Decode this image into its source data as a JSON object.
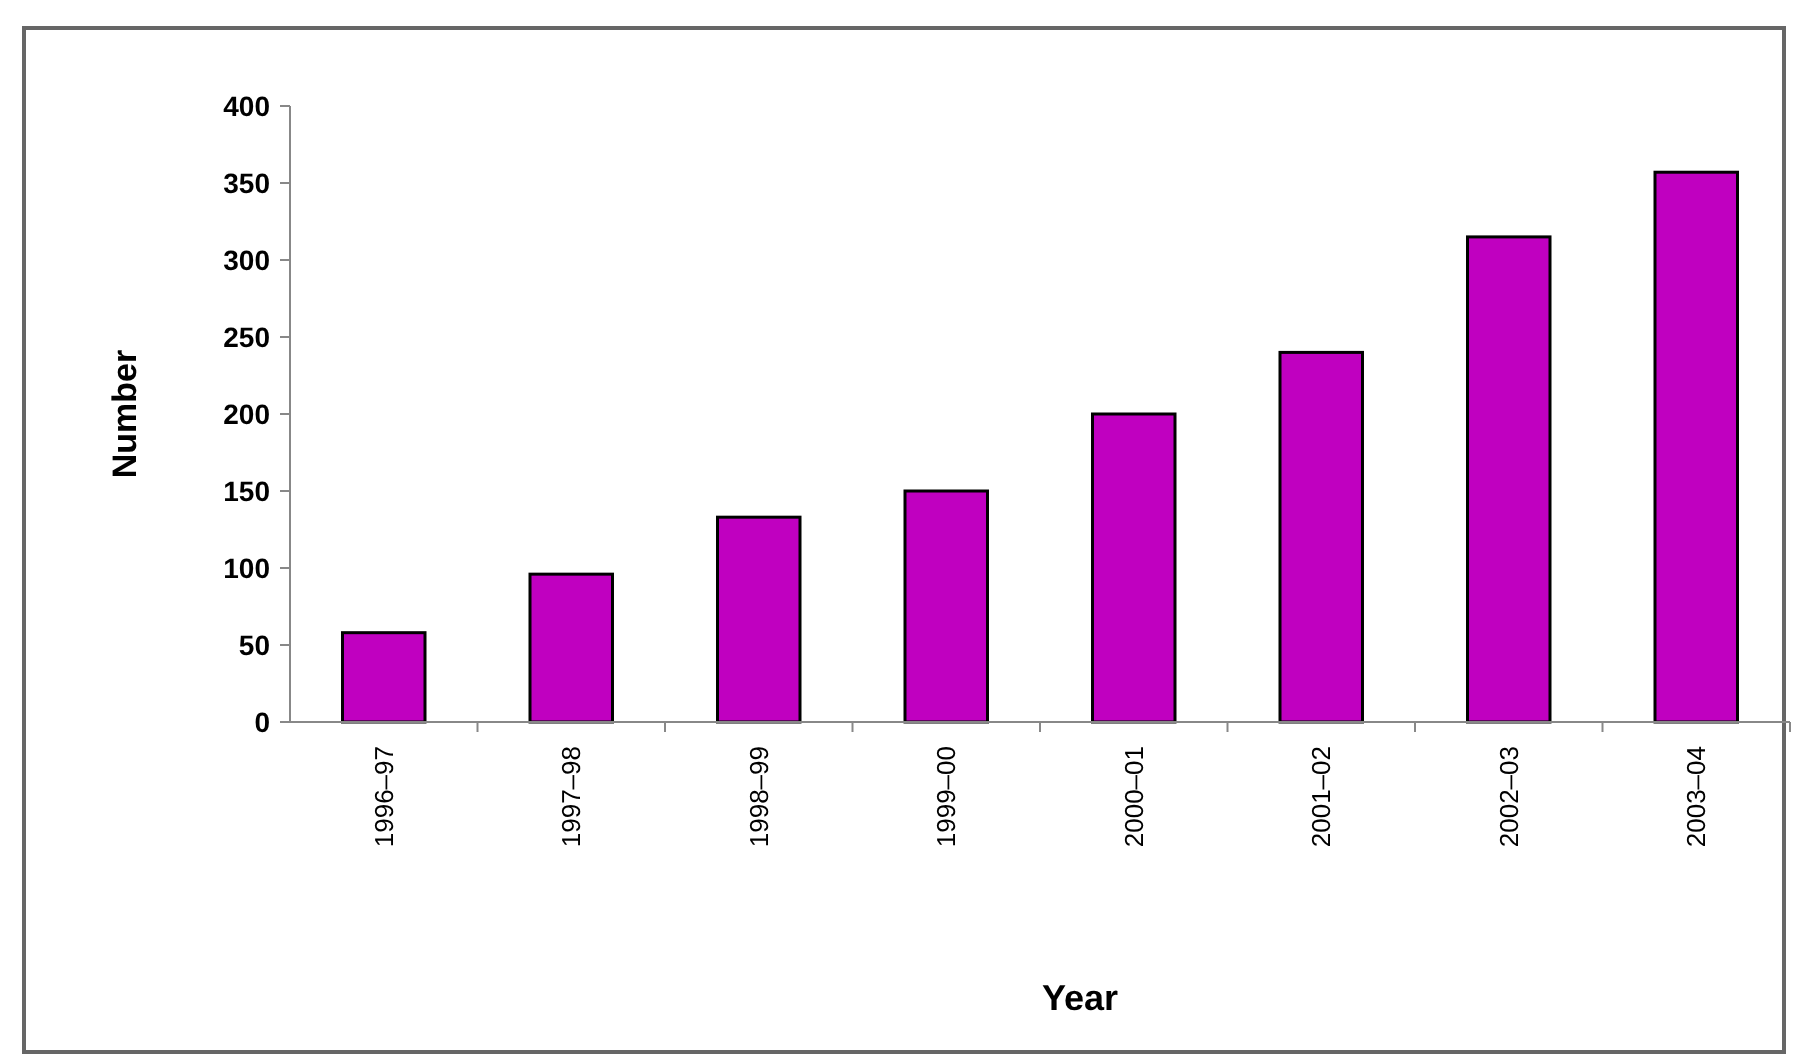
{
  "chart_data": {
    "type": "bar",
    "xlabel": "Year",
    "ylabel": "Number",
    "categories": [
      "1996–97",
      "1997–98",
      "1998–99",
      "1999–00",
      "2000–01",
      "2001–02",
      "2002–03",
      "2003–04"
    ],
    "values": [
      58,
      96,
      133,
      150,
      200,
      240,
      315,
      357
    ],
    "color": "#c000c0",
    "ylim": [
      0,
      400
    ],
    "yticks": [
      0,
      50,
      100,
      150,
      200,
      250,
      300,
      350,
      400
    ]
  }
}
